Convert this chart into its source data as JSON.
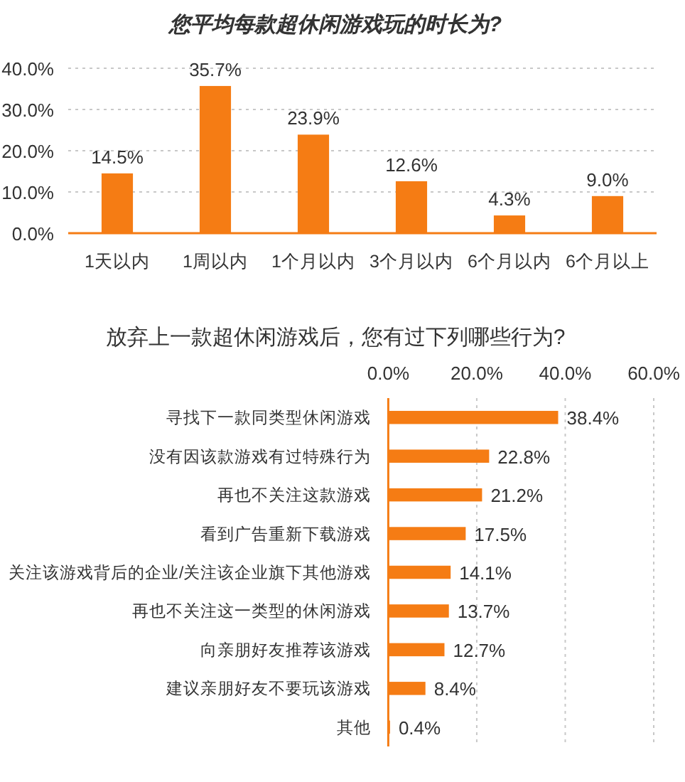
{
  "chart_data": [
    {
      "type": "bar",
      "title": "您平均每款超休闲游戏玩的时长为?",
      "categories": [
        "1天以内",
        "1周以内",
        "1个月以内",
        "3个月以内",
        "6个月以内",
        "6个月以上"
      ],
      "values": [
        14.5,
        35.7,
        23.9,
        12.6,
        4.3,
        9.0
      ],
      "value_labels": [
        "14.5%",
        "35.7%",
        "23.9%",
        "12.6%",
        "4.3%",
        "9.0%"
      ],
      "color": "#f57c14",
      "ylim": [
        0,
        40
      ],
      "yticks": [
        {
          "value": 0,
          "label": "0.0%"
        },
        {
          "value": 10,
          "label": "10.0%"
        },
        {
          "value": 20,
          "label": "20.0%"
        },
        {
          "value": 30,
          "label": "30.0%"
        },
        {
          "value": 40,
          "label": "40.0%"
        }
      ],
      "grid": "y"
    },
    {
      "type": "bar",
      "orientation": "horizontal",
      "title": "放弃上一款超休闲游戏后，您有过下列哪些行为?",
      "categories": [
        "寻找下一款同类型休闲游戏",
        "没有因该款游戏有过特殊行为",
        "再也不关注这款游戏",
        "看到广告重新下载游戏",
        "关注该游戏背后的企业/关注该企业旗下其他游戏",
        "再也不关注这一类型的休闲游戏",
        "向亲朋好友推荐该游戏",
        "建议亲朋好友不要玩该游戏",
        "其他"
      ],
      "values": [
        38.4,
        22.8,
        21.2,
        17.5,
        14.1,
        13.7,
        12.7,
        8.4,
        0.4
      ],
      "value_labels": [
        "38.4%",
        "22.8%",
        "21.2%",
        "17.5%",
        "14.1%",
        "13.7%",
        "12.7%",
        "8.4%",
        "0.4%"
      ],
      "color": "#f57c14",
      "xlim": [
        0,
        60
      ],
      "xticks": [
        {
          "value": 0,
          "label": "0.0%"
        },
        {
          "value": 20,
          "label": "20.0%"
        },
        {
          "value": 40,
          "label": "40.0%"
        },
        {
          "value": 60,
          "label": "60.0%"
        }
      ],
      "grid": "x"
    }
  ]
}
